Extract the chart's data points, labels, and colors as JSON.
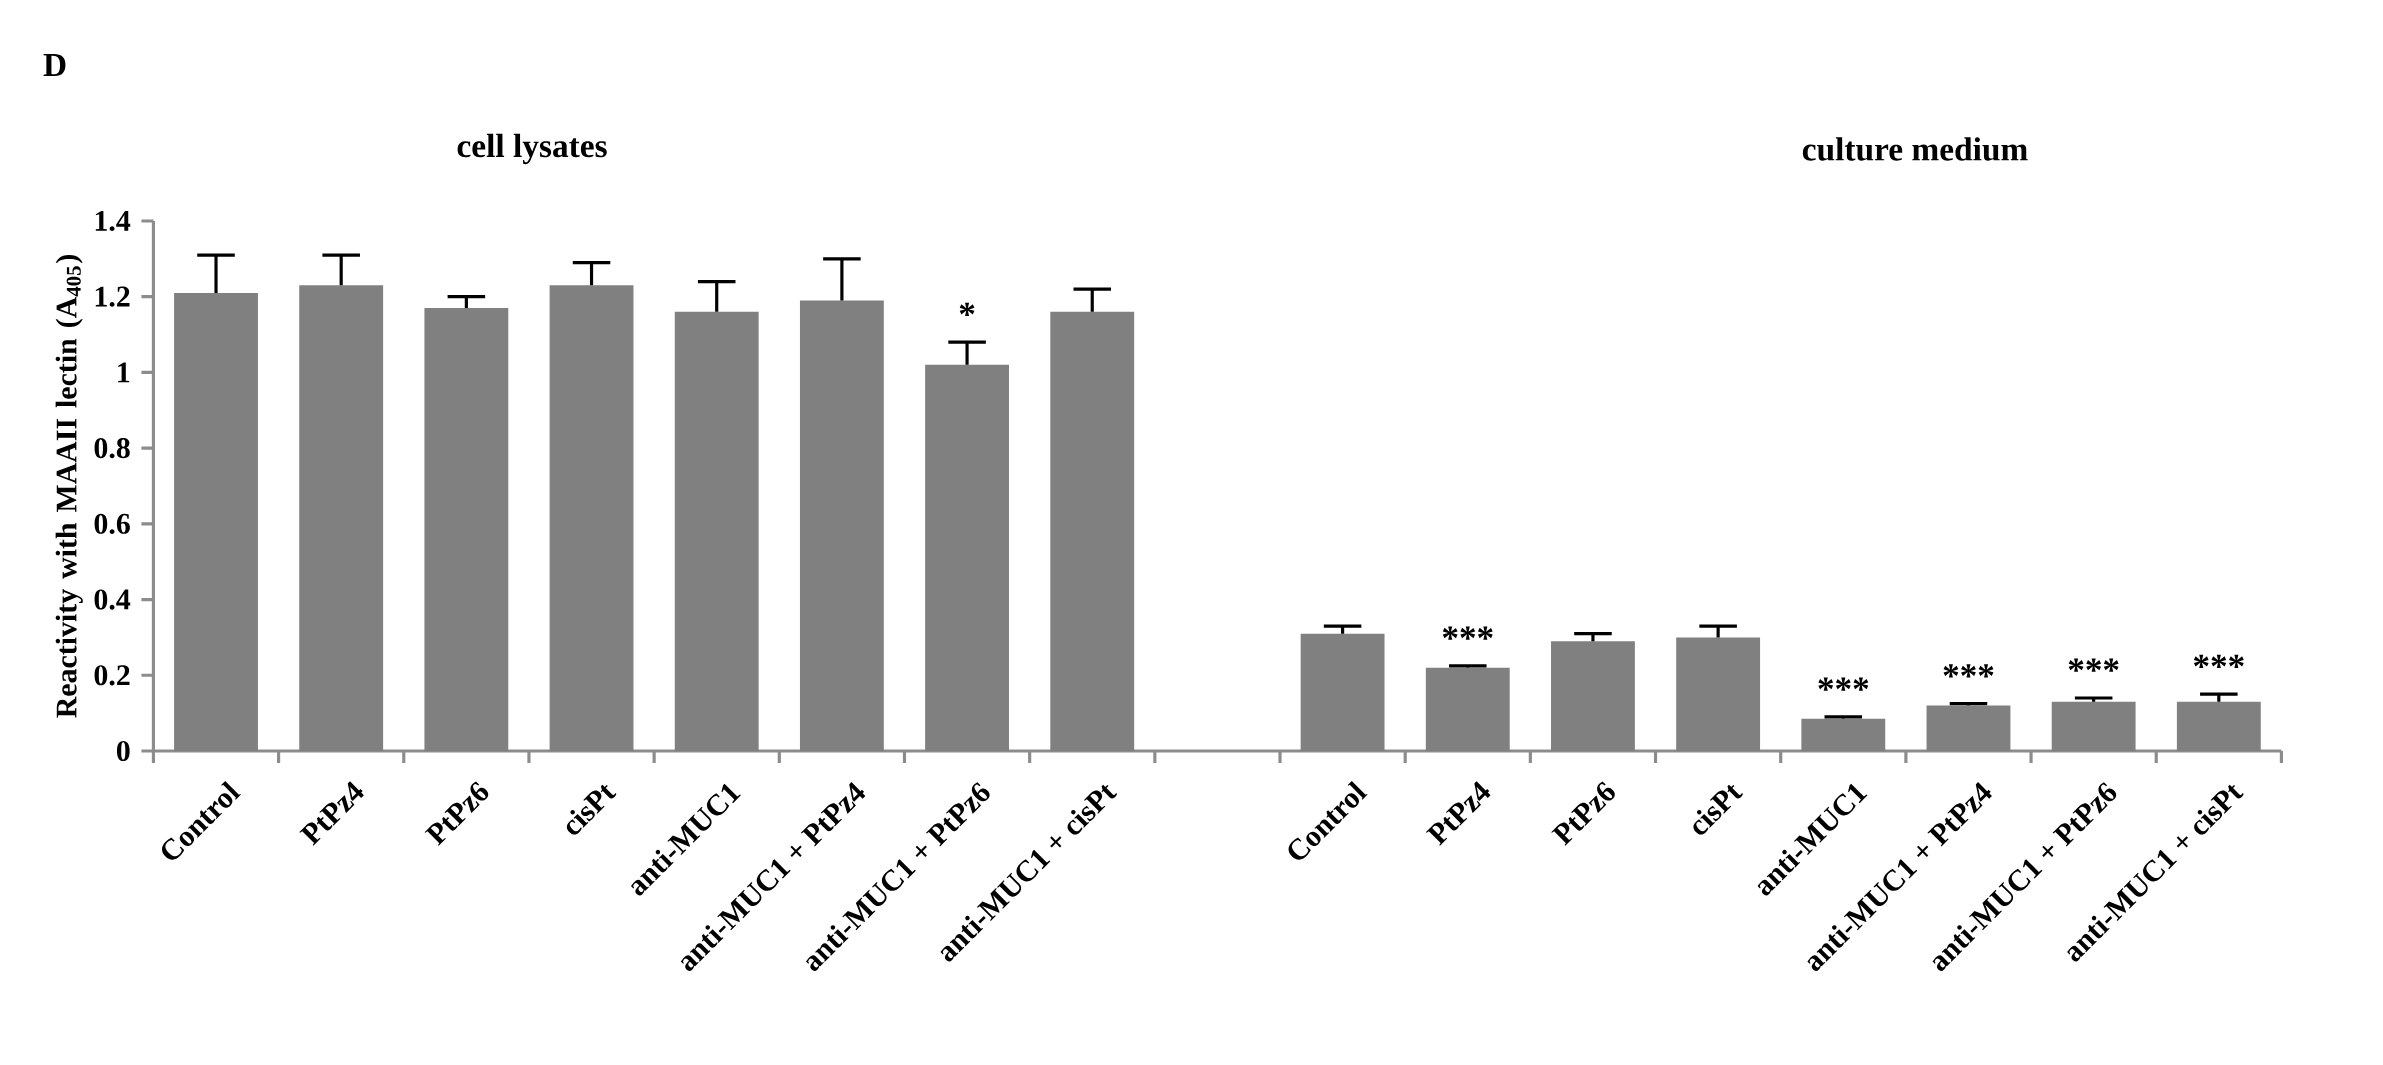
{
  "chart_data": {
    "type": "bar",
    "annotations": [
      "D",
      "cell lysates",
      "culture medium"
    ],
    "ylabel": "Reactivity with MAAII lectin (A$_{405}$)",
    "categories": [
      "Control",
      "PtPz4",
      "PtPz6",
      "cisPt",
      "anti-MUC1",
      "anti-MUC1 + PtPz4",
      "anti-MUC1 + PtPz6",
      "anti-MUC1 + cisPt",
      null,
      "Control",
      "PtPz4",
      "PtPz6",
      "cisPt",
      "anti-MUC1",
      "anti-MUC1 + PtPz4",
      "anti-MUC1 + PtPz6",
      "anti-MUC1 + cisPt"
    ],
    "values": [
      1.21,
      1.23,
      1.17,
      1.23,
      1.16,
      1.19,
      1.02,
      1.16,
      null,
      0.31,
      0.22,
      0.29,
      0.3,
      0.085,
      0.12,
      0.13,
      0.13
    ],
    "errors": [
      [
        1.21,
        1.31
      ],
      [
        1.23,
        1.31
      ],
      [
        1.17,
        1.2
      ],
      [
        1.23,
        1.29
      ],
      [
        1.16,
        1.24
      ],
      [
        1.19,
        1.3
      ],
      [
        1.02,
        1.08
      ],
      [
        1.16,
        1.22
      ],
      null,
      [
        0.31,
        0.33
      ],
      [
        0.22,
        0.225
      ],
      [
        0.29,
        0.31
      ],
      [
        0.3,
        0.33
      ],
      [
        0.085,
        0.09
      ],
      [
        0.12,
        0.125
      ],
      [
        0.13,
        0.14
      ],
      [
        0.13,
        0.15
      ]
    ],
    "value_labels": [
      null,
      null,
      null,
      null,
      null,
      null,
      "*",
      null,
      null,
      null,
      "***",
      null,
      null,
      "***",
      "***",
      "***",
      "***"
    ],
    "color": "#808080",
    "ylim": [
      0,
      1.4
    ],
    "yticks": [
      0,
      0.2,
      0.4,
      0.6,
      0.8,
      1,
      1.2,
      1.4
    ],
    "grid": false
  }
}
